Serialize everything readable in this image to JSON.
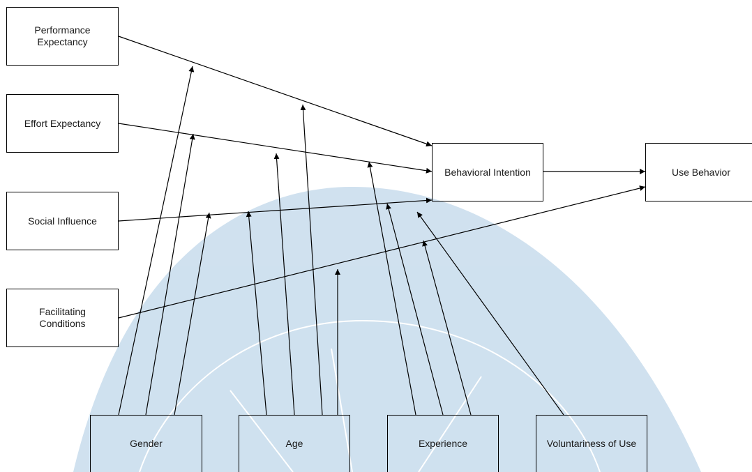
{
  "diagram": {
    "nodes": {
      "performance_expectancy": {
        "label_line1": "Performance",
        "label_line2": "Expectancy"
      },
      "effort_expectancy": {
        "label": "Effort Expectancy"
      },
      "social_influence": {
        "label": "Social Influence"
      },
      "facilitating_conditions": {
        "label_line1": "Facilitating",
        "label_line2": "Conditions"
      },
      "behavioral_intention": {
        "label": "Behavioral Intention"
      },
      "use_behavior": {
        "label": "Use Behavior"
      },
      "gender": {
        "label": "Gender"
      },
      "age": {
        "label": "Age"
      },
      "experience": {
        "label": "Experience"
      },
      "voluntariness": {
        "label": "Voluntariness of Use"
      }
    },
    "edges": [
      {
        "from": "Performance Expectancy",
        "to": "Behavioral Intention"
      },
      {
        "from": "Effort Expectancy",
        "to": "Behavioral Intention"
      },
      {
        "from": "Social Influence",
        "to": "Behavioral Intention"
      },
      {
        "from": "Facilitating Conditions",
        "to": "Use Behavior"
      },
      {
        "from": "Behavioral Intention",
        "to": "Use Behavior"
      }
    ],
    "moderations": [
      {
        "from": "Gender",
        "on": "Performance Expectancy → Behavioral Intention"
      },
      {
        "from": "Gender",
        "on": "Effort Expectancy → Behavioral Intention"
      },
      {
        "from": "Gender",
        "on": "Social Influence → Behavioral Intention"
      },
      {
        "from": "Age",
        "on": "Social Influence → Behavioral Intention"
      },
      {
        "from": "Age",
        "on": "Effort Expectancy → Behavioral Intention"
      },
      {
        "from": "Age",
        "on": "Performance Expectancy → Behavioral Intention"
      },
      {
        "from": "Age",
        "on": "Facilitating Conditions → Use Behavior"
      },
      {
        "from": "Experience",
        "on": "Effort Expectancy → Behavioral Intention"
      },
      {
        "from": "Experience",
        "on": "Social Influence → Behavioral Intention"
      },
      {
        "from": "Experience",
        "on": "Facilitating Conditions → Use Behavior"
      },
      {
        "from": "Voluntariness of Use",
        "on": "Social Influence → Behavioral Intention"
      }
    ],
    "colors": {
      "stroke": "#000000",
      "text": "#1a1a1a",
      "watermark": "#a9c9e2"
    }
  }
}
